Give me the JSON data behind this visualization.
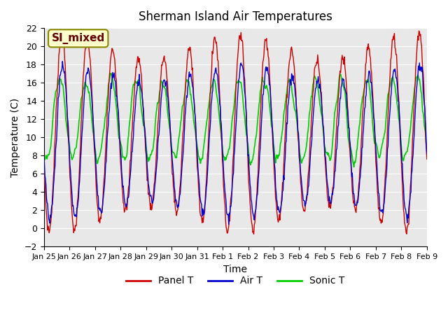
{
  "title": "Sherman Island Air Temperatures",
  "xlabel": "Time",
  "ylabel": "Temperature (C)",
  "ylim": [
    -2,
    22
  ],
  "yticks": [
    -2,
    0,
    2,
    4,
    6,
    8,
    10,
    12,
    14,
    16,
    18,
    20,
    22
  ],
  "xtick_labels": [
    "Jan 25",
    "Jan 26",
    "Jan 27",
    "Jan 28",
    "Jan 29",
    "Jan 30",
    "Jan 31",
    "Feb 1",
    "Feb 2",
    "Feb 3",
    "Feb 4",
    "Feb 5",
    "Feb 6",
    "Feb 7",
    "Feb 8",
    "Feb 9"
  ],
  "colors": {
    "panel": "#cc0000",
    "air": "#0000cc",
    "sonic": "#00cc00",
    "bg_plot": "#e8e8e8",
    "bg_fig": "#ffffff",
    "grid": "#ffffff"
  },
  "legend_entries": [
    "Panel T",
    "Air T",
    "Sonic T"
  ],
  "annotation_text": "SI_mixed",
  "annotation_color": "#660000",
  "annotation_bg": "#ffffcc",
  "annotation_border": "#888800"
}
